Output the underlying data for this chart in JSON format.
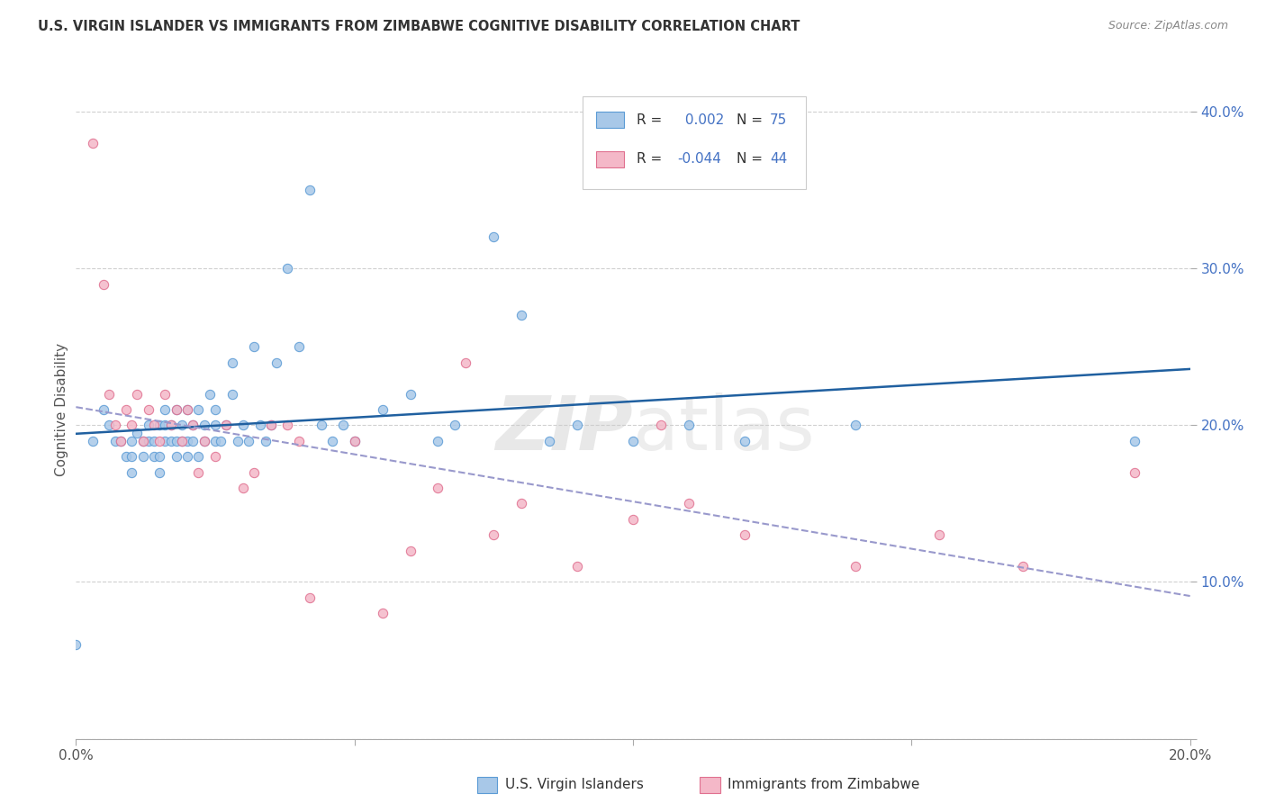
{
  "title": "U.S. VIRGIN ISLANDER VS IMMIGRANTS FROM ZIMBABWE COGNITIVE DISABILITY CORRELATION CHART",
  "source": "Source: ZipAtlas.com",
  "xlabel_blue": "U.S. Virgin Islanders",
  "xlabel_pink": "Immigrants from Zimbabwe",
  "ylabel": "Cognitive Disability",
  "legend_blue_R": " 0.002",
  "legend_blue_N": "75",
  "legend_pink_R": "-0.044",
  "legend_pink_N": "44",
  "xlim": [
    0.0,
    0.2
  ],
  "ylim": [
    0.0,
    0.42
  ],
  "blue_color": "#a8c8e8",
  "blue_edge_color": "#5b9bd5",
  "pink_color": "#f4b8c8",
  "pink_edge_color": "#e07090",
  "blue_line_color": "#2060a0",
  "pink_line_color": "#d04060",
  "dashed_line_color": "#9999cc",
  "watermark_color": "#d8d8d8",
  "background_color": "#ffffff",
  "grid_color": "#d0d0d0",
  "title_color": "#333333",
  "source_color": "#888888",
  "axis_label_color": "#555555",
  "right_tick_color": "#4472c4",
  "blue_scatter_x": [
    0.0,
    0.003,
    0.005,
    0.006,
    0.007,
    0.008,
    0.009,
    0.01,
    0.01,
    0.01,
    0.011,
    0.012,
    0.012,
    0.013,
    0.013,
    0.014,
    0.014,
    0.015,
    0.015,
    0.015,
    0.016,
    0.016,
    0.016,
    0.017,
    0.017,
    0.018,
    0.018,
    0.018,
    0.019,
    0.019,
    0.02,
    0.02,
    0.02,
    0.021,
    0.021,
    0.022,
    0.022,
    0.023,
    0.023,
    0.024,
    0.025,
    0.025,
    0.025,
    0.026,
    0.027,
    0.028,
    0.028,
    0.029,
    0.03,
    0.031,
    0.032,
    0.033,
    0.034,
    0.035,
    0.036,
    0.038,
    0.04,
    0.042,
    0.044,
    0.046,
    0.048,
    0.05,
    0.055,
    0.06,
    0.065,
    0.068,
    0.075,
    0.08,
    0.085,
    0.09,
    0.1,
    0.11,
    0.12,
    0.14,
    0.19
  ],
  "blue_scatter_y": [
    0.06,
    0.19,
    0.21,
    0.2,
    0.19,
    0.19,
    0.18,
    0.17,
    0.18,
    0.19,
    0.195,
    0.18,
    0.19,
    0.19,
    0.2,
    0.18,
    0.19,
    0.17,
    0.18,
    0.2,
    0.19,
    0.2,
    0.21,
    0.19,
    0.2,
    0.18,
    0.19,
    0.21,
    0.19,
    0.2,
    0.18,
    0.19,
    0.21,
    0.19,
    0.2,
    0.18,
    0.21,
    0.19,
    0.2,
    0.22,
    0.19,
    0.2,
    0.21,
    0.19,
    0.2,
    0.22,
    0.24,
    0.19,
    0.2,
    0.19,
    0.25,
    0.2,
    0.19,
    0.2,
    0.24,
    0.3,
    0.25,
    0.35,
    0.2,
    0.19,
    0.2,
    0.19,
    0.21,
    0.22,
    0.19,
    0.2,
    0.32,
    0.27,
    0.19,
    0.2,
    0.19,
    0.2,
    0.19,
    0.2,
    0.19
  ],
  "pink_scatter_x": [
    0.003,
    0.005,
    0.006,
    0.007,
    0.008,
    0.009,
    0.01,
    0.011,
    0.012,
    0.013,
    0.014,
    0.015,
    0.016,
    0.017,
    0.018,
    0.019,
    0.02,
    0.021,
    0.022,
    0.023,
    0.025,
    0.027,
    0.03,
    0.032,
    0.035,
    0.038,
    0.04,
    0.042,
    0.05,
    0.055,
    0.06,
    0.065,
    0.07,
    0.075,
    0.08,
    0.09,
    0.1,
    0.105,
    0.11,
    0.12,
    0.14,
    0.155,
    0.17,
    0.19
  ],
  "pink_scatter_y": [
    0.38,
    0.29,
    0.22,
    0.2,
    0.19,
    0.21,
    0.2,
    0.22,
    0.19,
    0.21,
    0.2,
    0.19,
    0.22,
    0.2,
    0.21,
    0.19,
    0.21,
    0.2,
    0.17,
    0.19,
    0.18,
    0.2,
    0.16,
    0.17,
    0.2,
    0.2,
    0.19,
    0.09,
    0.19,
    0.08,
    0.12,
    0.16,
    0.24,
    0.13,
    0.15,
    0.11,
    0.14,
    0.2,
    0.15,
    0.13,
    0.11,
    0.13,
    0.11,
    0.17
  ]
}
